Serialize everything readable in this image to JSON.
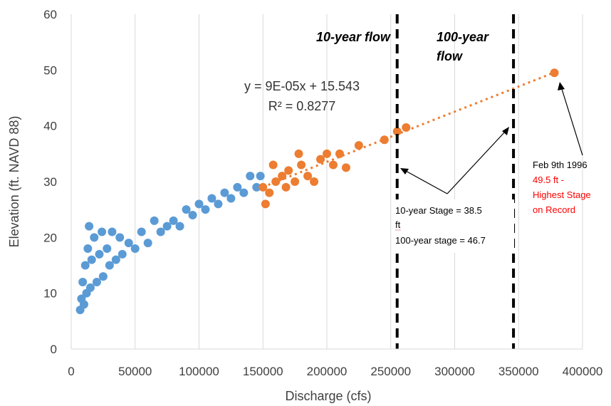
{
  "chart_data": {
    "type": "scatter",
    "xlabel": "Discharge (cfs)",
    "ylabel": "Elevation (ft. NAVD 88)",
    "xlim": [
      0,
      400000
    ],
    "ylim": [
      0,
      60
    ],
    "x_ticks": [
      "0",
      "50000",
      "100000",
      "150000",
      "200000",
      "250000",
      "300000",
      "350000",
      "400000"
    ],
    "y_ticks": [
      "0",
      "10",
      "20",
      "30",
      "40",
      "50",
      "60"
    ],
    "grid": "vertical major gridlines",
    "colors": {
      "historical": "#5b9bd5",
      "high_flow": "#ed7d31",
      "trendline": "#ed7d31",
      "flow_lines": "#000000"
    },
    "series": [
      {
        "color": "#5b9bd5",
        "points": [
          [
            7000,
            7
          ],
          [
            8000,
            9
          ],
          [
            9000,
            12
          ],
          [
            10000,
            8
          ],
          [
            11000,
            15
          ],
          [
            12000,
            10
          ],
          [
            13000,
            18
          ],
          [
            14000,
            22
          ],
          [
            15000,
            11
          ],
          [
            16000,
            16
          ],
          [
            18000,
            20
          ],
          [
            20000,
            12
          ],
          [
            22000,
            17
          ],
          [
            24000,
            21
          ],
          [
            25000,
            13
          ],
          [
            28000,
            18
          ],
          [
            30000,
            15
          ],
          [
            32000,
            21
          ],
          [
            35000,
            16
          ],
          [
            38000,
            20
          ],
          [
            40000,
            17
          ],
          [
            45000,
            19
          ],
          [
            50000,
            18
          ],
          [
            55000,
            21
          ],
          [
            60000,
            19
          ],
          [
            65000,
            23
          ],
          [
            70000,
            21
          ],
          [
            75000,
            22
          ],
          [
            80000,
            23
          ],
          [
            85000,
            22
          ],
          [
            90000,
            25
          ],
          [
            95000,
            24
          ],
          [
            100000,
            26
          ],
          [
            105000,
            25
          ],
          [
            110000,
            27
          ],
          [
            115000,
            26
          ],
          [
            120000,
            28
          ],
          [
            125000,
            27
          ],
          [
            130000,
            29
          ],
          [
            135000,
            28
          ],
          [
            140000,
            31
          ],
          [
            145000,
            29
          ],
          [
            148000,
            31
          ]
        ]
      },
      {
        "color": "#ed7d31",
        "points": [
          [
            150000,
            29
          ],
          [
            152000,
            26
          ],
          [
            155000,
            28
          ],
          [
            158000,
            33
          ],
          [
            160000,
            30
          ],
          [
            165000,
            31
          ],
          [
            168000,
            29
          ],
          [
            170000,
            32
          ],
          [
            175000,
            30
          ],
          [
            178000,
            35
          ],
          [
            180000,
            33
          ],
          [
            185000,
            31
          ],
          [
            190000,
            30
          ],
          [
            195000,
            34
          ],
          [
            200000,
            35
          ],
          [
            205000,
            33
          ],
          [
            210000,
            35
          ],
          [
            215000,
            32.5
          ],
          [
            225000,
            36.5
          ],
          [
            245000,
            37.5
          ],
          [
            255000,
            39
          ],
          [
            262000,
            39.7
          ],
          [
            378000,
            49.5
          ]
        ]
      }
    ],
    "trendline": {
      "slope": 9e-05,
      "intercept": 15.543,
      "x_start": 150000,
      "x_end": 378000
    },
    "equation": "y = 9E-05x + 15.543",
    "r_squared": "R² = 0.8277",
    "reference_lines": [
      {
        "x": 255000,
        "label": "10-year flow"
      },
      {
        "x": 346000,
        "label_line1": "100-year",
        "label_line2": "flow"
      }
    ],
    "annotations": {
      "stage_10yr_a": "10-year Stage = 38.5",
      "stage_10yr_b": "ft",
      "stage_100yr": "100-year stage = 46.7",
      "record_date": "Feb 9th 1996",
      "record_line1": "49.5 ft -",
      "record_line2": "Highest Stage",
      "record_line3": "on Record"
    }
  }
}
